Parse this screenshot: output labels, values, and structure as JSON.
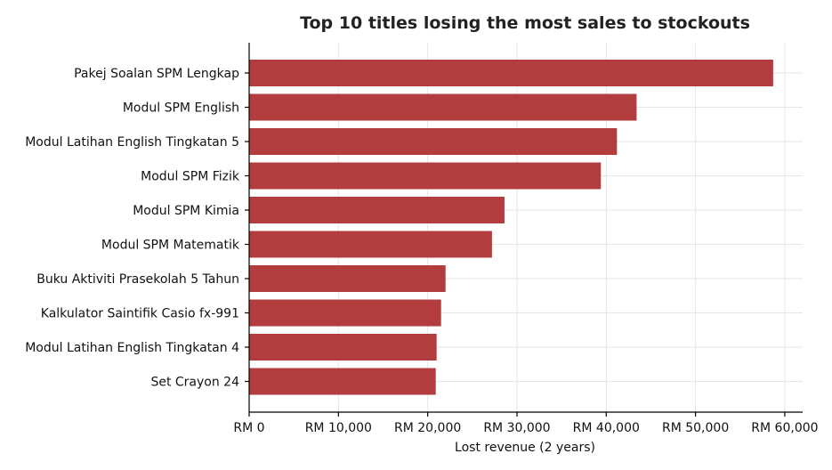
{
  "chart_data": {
    "type": "bar",
    "orientation": "horizontal",
    "title": "Top 10 titles losing the most sales to stockouts",
    "xlabel": "Lost revenue (2 years)",
    "ylabel": "",
    "categories": [
      "Pakej Soalan SPM Lengkap",
      "Modul SPM English",
      "Modul Latihan English Tingkatan 5",
      "Modul SPM Fizik",
      "Modul SPM Kimia",
      "Modul SPM Matematik",
      "Buku Aktiviti Prasekolah 5 Tahun",
      "Kalkulator Saintifik Casio fx-991",
      "Modul Latihan English Tingkatan 4",
      "Set Crayon 24"
    ],
    "values": [
      58700,
      43400,
      41200,
      39400,
      28600,
      27200,
      22000,
      21500,
      21000,
      20900
    ],
    "xlim": [
      0,
      62000
    ],
    "xticks": [
      0,
      10000,
      20000,
      30000,
      40000,
      50000,
      60000
    ],
    "xtick_labels": [
      "RM 0",
      "RM 10,000",
      "RM 20,000",
      "RM 30,000",
      "RM 40,000",
      "RM 50,000",
      "RM 60,000"
    ],
    "bar_color": "#b33c3e",
    "grid": true
  }
}
